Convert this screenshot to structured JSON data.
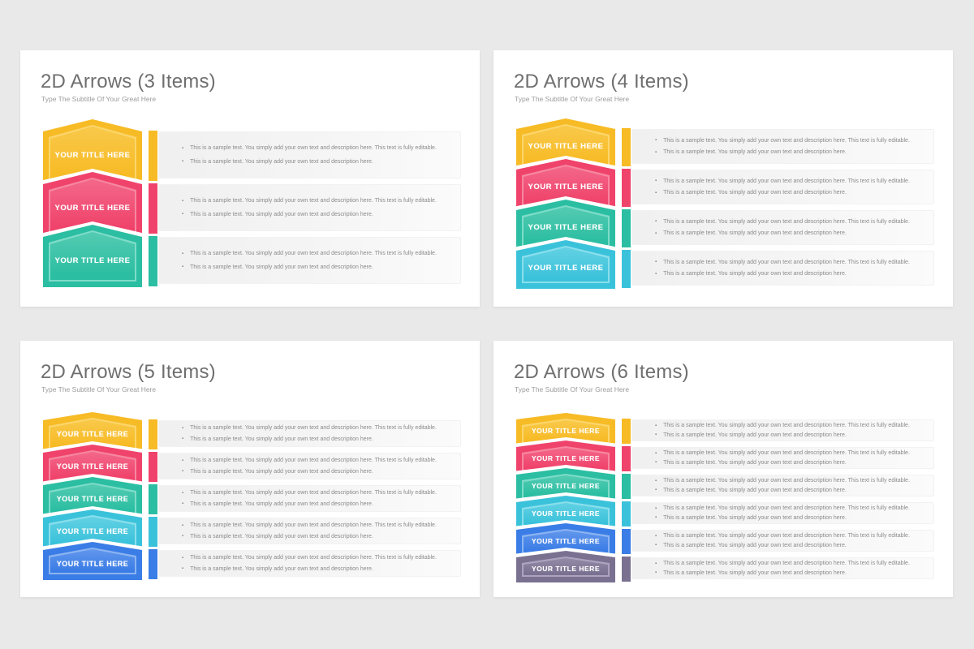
{
  "palette": {
    "yellow": "#F7BB26",
    "red": "#F0436B",
    "teal": "#2BBEA2",
    "cyan": "#3BC2DB",
    "blue": "#3B7DE6",
    "purple": "#7A7191",
    "page_background": "#E9E9E9",
    "card_background": "#FFFFFF",
    "panel_background": "#F1F1F1",
    "title_text": "#6F6F6F",
    "body_text": "#8A8A8A"
  },
  "shared": {
    "item_title": "YOUR TITLE HERE",
    "bullet_marker": "▪",
    "bullet_long": "This is a sample text. You simply add your own text and description here. This text is fully editable.",
    "bullet_short": "This is a sample text. You simply add your own text and description here."
  },
  "slides": [
    {
      "title": "2D Arrows (3 Items)",
      "subtitle": "Type The Subtitle Of Your Great Here",
      "items": [
        "yellow",
        "red",
        "teal"
      ]
    },
    {
      "title": "2D Arrows (4 Items)",
      "subtitle": "Type The Subtitle Of Your Great Here",
      "items": [
        "yellow",
        "red",
        "teal",
        "cyan"
      ]
    },
    {
      "title": "2D Arrows (5 Items)",
      "subtitle": "Type The Subtitle Of Your Great Here",
      "items": [
        "yellow",
        "red",
        "teal",
        "cyan",
        "blue"
      ]
    },
    {
      "title": "2D Arrows (6 Items)",
      "subtitle": "Type The Subtitle Of Your Great Here",
      "items": [
        "yellow",
        "red",
        "teal",
        "cyan",
        "blue",
        "purple"
      ]
    }
  ]
}
